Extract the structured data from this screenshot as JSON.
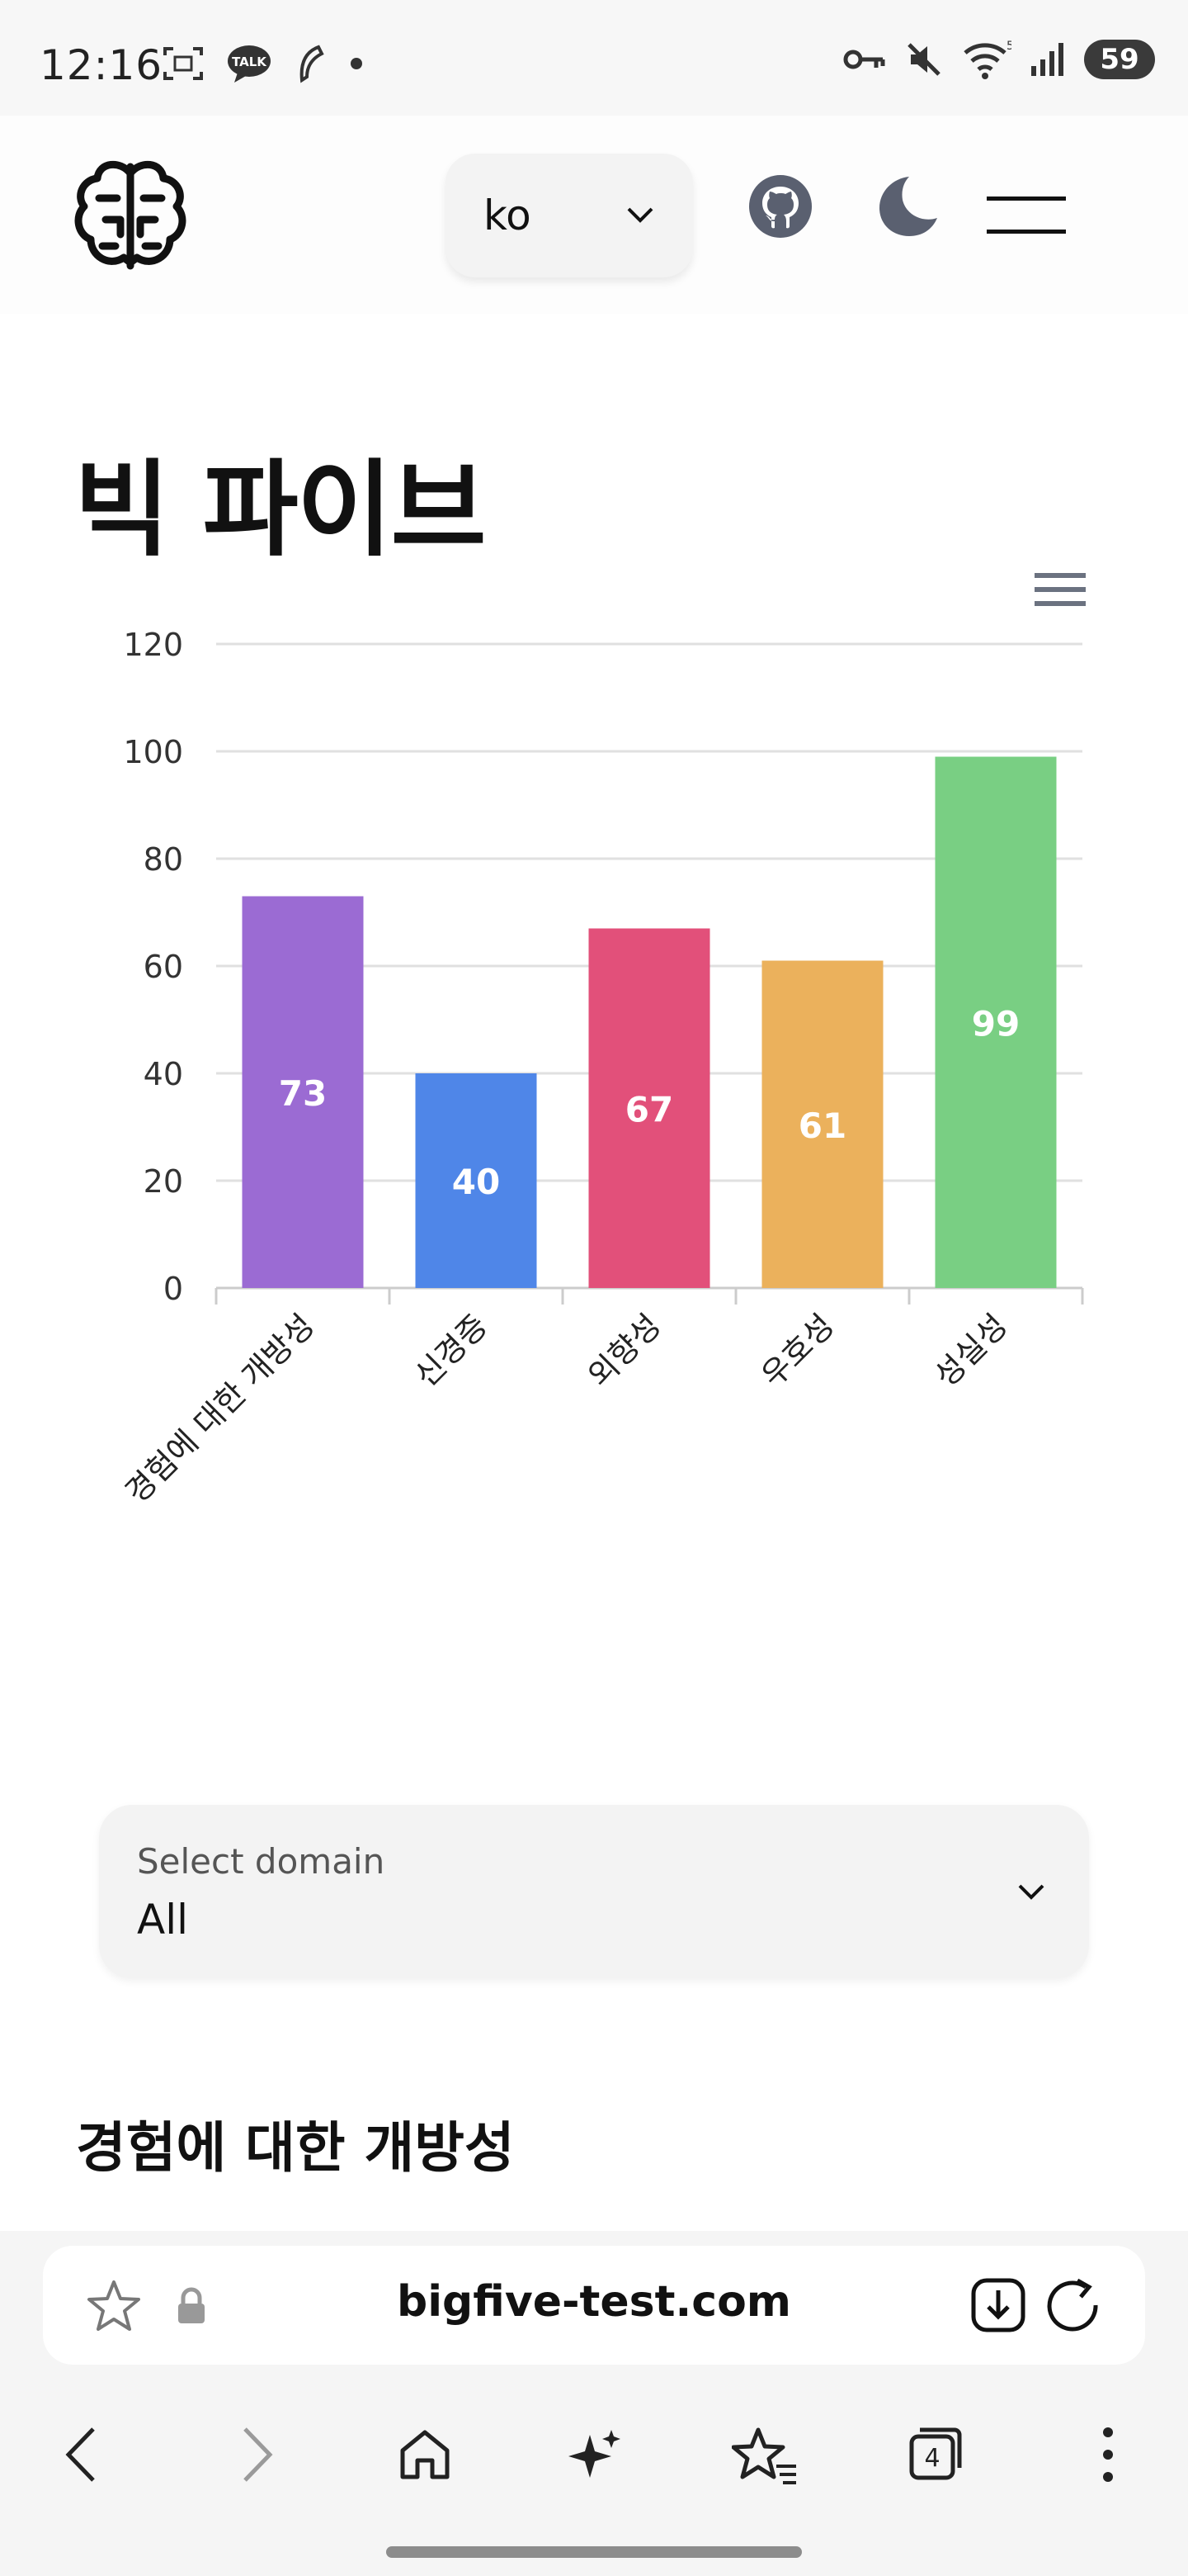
{
  "status": {
    "time": "12:16",
    "battery": "59",
    "talk_badge": "TALK"
  },
  "header": {
    "language": "ko"
  },
  "page": {
    "title": "빅 파이브"
  },
  "chart_data": {
    "type": "bar",
    "categories": [
      "경험에 대한 개방성",
      "신경증",
      "외향성",
      "우호성",
      "성실성"
    ],
    "values": [
      73,
      40,
      67,
      61,
      99
    ],
    "colors": [
      "#9b6bd3",
      "#4f86e8",
      "#e2507a",
      "#ebb15c",
      "#79cf83"
    ],
    "ylim": [
      0,
      120
    ],
    "yticks": [
      0,
      20,
      40,
      60,
      80,
      100,
      120
    ],
    "grid": true,
    "data_labels": true
  },
  "domain_select": {
    "label": "Select domain",
    "value": "All"
  },
  "section": {
    "heading": "경험에 대한 개방성"
  },
  "browser": {
    "url": "bigfive-test.com",
    "tab_count": "4"
  }
}
